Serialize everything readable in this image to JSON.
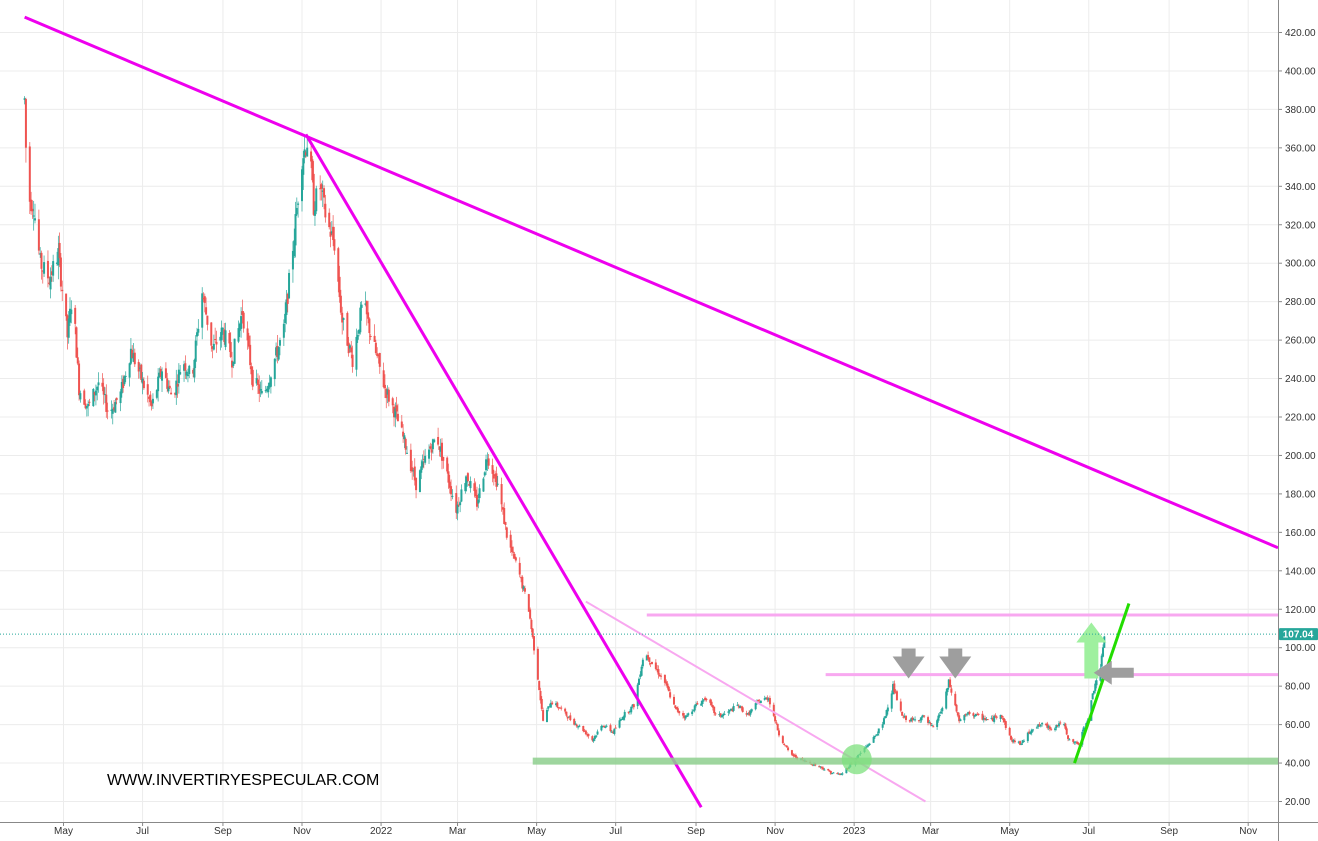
{
  "chart_data": {
    "type": "candlestick",
    "y_axis": {
      "ticks": [
        20,
        40,
        60,
        80,
        100,
        120,
        140,
        160,
        180,
        200,
        220,
        240,
        260,
        280,
        300,
        320,
        340,
        360,
        380,
        400,
        420
      ],
      "tick_labels": [
        "20.00",
        "40.00",
        "60.00",
        "80.00",
        "100.00",
        "120.00",
        "140.00",
        "160.00",
        "180.00",
        "200.00",
        "220.00",
        "240.00",
        "260.00",
        "280.00",
        "300.00",
        "320.00",
        "340.00",
        "360.00",
        "380.00",
        "400.00",
        "420.00"
      ],
      "range": [
        12,
        432
      ]
    },
    "x_axis": {
      "tick_labels": [
        "May",
        "Jul",
        "Sep",
        "Nov",
        "2022",
        "Mar",
        "May",
        "Jul",
        "Sep",
        "Nov",
        "2023",
        "Mar",
        "May",
        "Jul",
        "Sep",
        "Nov"
      ],
      "tick_dates": [
        "2021-05-01",
        "2021-07-01",
        "2021-09-01",
        "2021-11-01",
        "2022-01-01",
        "2022-03-01",
        "2022-05-01",
        "2022-07-01",
        "2022-09-01",
        "2022-11-01",
        "2023-01-01",
        "2023-03-01",
        "2023-05-01",
        "2023-07-01",
        "2023-09-01",
        "2023-11-01"
      ],
      "range": [
        "2021-03-13",
        "2023-11-24"
      ]
    },
    "grid": true,
    "last_price": {
      "value": 107.04,
      "label": "107.04",
      "color": "#26a69a"
    },
    "price_path": [
      [
        "2021-04-01",
        385
      ],
      [
        "2021-04-03",
        335
      ],
      [
        "2021-04-08",
        330
      ],
      [
        "2021-04-13",
        300
      ],
      [
        "2021-04-20",
        292
      ],
      [
        "2021-04-27",
        305
      ],
      [
        "2021-05-04",
        262
      ],
      [
        "2021-05-08",
        285
      ],
      [
        "2021-05-13",
        235
      ],
      [
        "2021-05-20",
        225
      ],
      [
        "2021-05-28",
        238
      ],
      [
        "2021-06-05",
        222
      ],
      [
        "2021-06-14",
        232
      ],
      [
        "2021-06-22",
        255
      ],
      [
        "2021-06-30",
        240
      ],
      [
        "2021-07-08",
        225
      ],
      [
        "2021-07-16",
        245
      ],
      [
        "2021-07-24",
        230
      ],
      [
        "2021-08-01",
        250
      ],
      [
        "2021-08-08",
        240
      ],
      [
        "2021-08-16",
        285
      ],
      [
        "2021-08-24",
        255
      ],
      [
        "2021-09-01",
        265
      ],
      [
        "2021-09-08",
        250
      ],
      [
        "2021-09-16",
        275
      ],
      [
        "2021-09-24",
        240
      ],
      [
        "2021-10-02",
        230
      ],
      [
        "2021-10-10",
        248
      ],
      [
        "2021-10-18",
        265
      ],
      [
        "2021-10-26",
        315
      ],
      [
        "2021-11-01",
        355
      ],
      [
        "2021-11-06",
        365
      ],
      [
        "2021-11-10",
        330
      ],
      [
        "2021-11-15",
        340
      ],
      [
        "2021-11-20",
        322
      ],
      [
        "2021-11-26",
        310
      ],
      [
        "2021-12-02",
        270
      ],
      [
        "2021-12-10",
        250
      ],
      [
        "2021-12-18",
        280
      ],
      [
        "2021-12-26",
        258
      ],
      [
        "2022-01-04",
        235
      ],
      [
        "2022-01-12",
        222
      ],
      [
        "2022-01-20",
        205
      ],
      [
        "2022-01-28",
        185
      ],
      [
        "2022-02-05",
        200
      ],
      [
        "2022-02-13",
        210
      ],
      [
        "2022-02-21",
        190
      ],
      [
        "2022-02-28",
        172
      ],
      [
        "2022-03-08",
        190
      ],
      [
        "2022-03-16",
        175
      ],
      [
        "2022-03-24",
        200
      ],
      [
        "2022-04-01",
        185
      ],
      [
        "2022-04-09",
        155
      ],
      [
        "2022-04-17",
        140
      ],
      [
        "2022-04-25",
        120
      ],
      [
        "2022-05-01",
        90
      ],
      [
        "2022-05-06",
        62
      ],
      [
        "2022-05-12",
        72
      ],
      [
        "2022-05-20",
        68
      ],
      [
        "2022-05-28",
        62
      ],
      [
        "2022-06-05",
        58
      ],
      [
        "2022-06-13",
        52
      ],
      [
        "2022-06-21",
        60
      ],
      [
        "2022-06-29",
        56
      ],
      [
        "2022-07-07",
        65
      ],
      [
        "2022-07-15",
        70
      ],
      [
        "2022-07-23",
        98
      ],
      [
        "2022-07-31",
        90
      ],
      [
        "2022-08-08",
        82
      ],
      [
        "2022-08-16",
        68
      ],
      [
        "2022-08-24",
        64
      ],
      [
        "2022-09-01",
        70
      ],
      [
        "2022-09-09",
        74
      ],
      [
        "2022-09-17",
        64
      ],
      [
        "2022-09-25",
        66
      ],
      [
        "2022-10-03",
        70
      ],
      [
        "2022-10-11",
        65
      ],
      [
        "2022-10-19",
        72
      ],
      [
        "2022-10-27",
        74
      ],
      [
        "2022-11-04",
        55
      ],
      [
        "2022-11-12",
        45
      ],
      [
        "2022-11-20",
        42
      ],
      [
        "2022-11-28",
        40
      ],
      [
        "2022-12-06",
        38
      ],
      [
        "2022-12-14",
        35
      ],
      [
        "2022-12-22",
        34
      ],
      [
        "2022-12-30",
        40
      ],
      [
        "2023-01-07",
        46
      ],
      [
        "2023-01-15",
        52
      ],
      [
        "2023-01-23",
        60
      ],
      [
        "2023-01-31",
        80
      ],
      [
        "2023-02-07",
        64
      ],
      [
        "2023-02-15",
        62
      ],
      [
        "2023-02-23",
        64
      ],
      [
        "2023-03-03",
        58
      ],
      [
        "2023-03-11",
        70
      ],
      [
        "2023-03-15",
        82
      ],
      [
        "2023-03-23",
        62
      ],
      [
        "2023-03-31",
        66
      ],
      [
        "2023-04-08",
        64
      ],
      [
        "2023-04-16",
        62
      ],
      [
        "2023-04-24",
        66
      ],
      [
        "2023-05-02",
        52
      ],
      [
        "2023-05-10",
        50
      ],
      [
        "2023-05-18",
        58
      ],
      [
        "2023-05-26",
        60
      ],
      [
        "2023-06-03",
        58
      ],
      [
        "2023-06-11",
        62
      ],
      [
        "2023-06-15",
        52
      ],
      [
        "2023-06-23",
        50
      ],
      [
        "2023-07-01",
        65
      ],
      [
        "2023-07-06",
        82
      ],
      [
        "2023-07-10",
        88
      ],
      [
        "2023-07-13",
        107
      ]
    ],
    "annotations": {
      "lines": [
        {
          "id": "magenta-long-downtrend",
          "color": "#ee00ee",
          "width": 3,
          "p1": [
            "2021-04-01",
            428
          ],
          "p2": [
            "2023-11-24",
            152
          ]
        },
        {
          "id": "magenta-steep-downtrend",
          "color": "#ee00ee",
          "width": 3,
          "p1": [
            "2021-11-04",
            367
          ],
          "p2": [
            "2022-09-05",
            17
          ]
        },
        {
          "id": "pink-channel-downtrend",
          "color": "#f8a8f0",
          "width": 2,
          "p1": [
            "2022-06-08",
            124
          ],
          "p2": [
            "2023-02-25",
            20
          ]
        },
        {
          "id": "pink-resistance-116",
          "color": "#f8a8f0",
          "width": 3,
          "p1": [
            "2022-07-25",
            117
          ],
          "p2": [
            "2023-11-24",
            117
          ]
        },
        {
          "id": "pink-resistance-86",
          "color": "#f8a8f0",
          "width": 3,
          "p1": [
            "2022-12-10",
            86
          ],
          "p2": [
            "2023-11-24",
            86
          ]
        },
        {
          "id": "green-support-41",
          "color": "#8fd08f",
          "width": 7,
          "p1": [
            "2022-04-28",
            41
          ],
          "p2": [
            "2023-11-24",
            41
          ]
        },
        {
          "id": "green-uptrend",
          "color": "#22dd00",
          "width": 3,
          "p1": [
            "2023-06-20",
            40
          ],
          "p2": [
            "2023-08-01",
            123
          ]
        }
      ],
      "circle": {
        "color": "#7de07d",
        "center": [
          "2023-01-03",
          42
        ]
      },
      "arrows_down": [
        [
          "2023-02-12",
          84
        ],
        [
          "2023-03-20",
          84
        ]
      ],
      "arrow_up": [
        "2023-07-03",
        84
      ],
      "arrow_left": [
        "2023-07-28",
        87
      ]
    },
    "colors": {
      "up": "#26a69a",
      "down": "#ef5350",
      "grid": "#ececec"
    }
  },
  "watermark": "WWW.INVERTIRYESPECULAR.COM"
}
